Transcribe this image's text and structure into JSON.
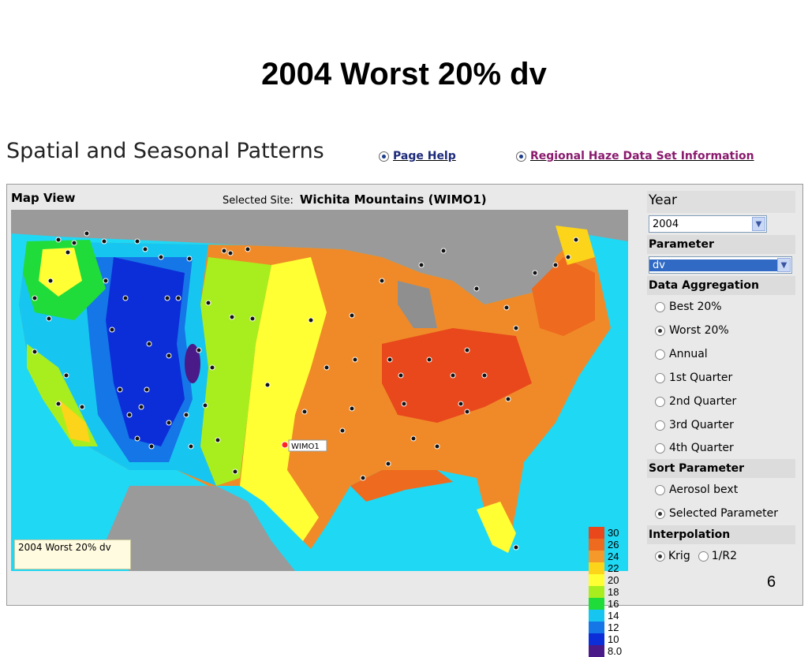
{
  "slide": {
    "title": "2004 Worst 20% dv",
    "number": "6"
  },
  "app": {
    "title": "Spatial and Seasonal Patterns",
    "links": {
      "help": "Page Help",
      "info": "Regional Haze Data Set Information"
    },
    "link_colors": {
      "help": "#1d2a7a",
      "info": "#8a1a6e"
    }
  },
  "map": {
    "view_label": "Map View",
    "selected_site_label": "Selected Site:",
    "selected_site_value": "Wichita Mountains (WIMO1)",
    "site_marker_label": "WIMO1",
    "caption": "2004 Worst 20% dv",
    "legend": [
      {
        "label": "30",
        "color": "#e8481c"
      },
      {
        "label": "26",
        "color": "#ee6a1e"
      },
      {
        "label": "24",
        "color": "#f59a2a"
      },
      {
        "label": "22",
        "color": "#fcd419"
      },
      {
        "label": "20",
        "color": "#ffff33"
      },
      {
        "label": "18",
        "color": "#a8ee1e"
      },
      {
        "label": "16",
        "color": "#1fdc3a"
      },
      {
        "label": "14",
        "color": "#17c6f0"
      },
      {
        "label": "12",
        "color": "#1576e8"
      },
      {
        "label": "10",
        "color": "#0c2ed8"
      },
      {
        "label": "8.0",
        "color": "#4a1a88"
      }
    ]
  },
  "controls": {
    "year_label": "Year",
    "year_value": "2004",
    "parameter_label": "Parameter",
    "parameter_value": "dv",
    "aggregation_label": "Data Aggregation",
    "aggregation_options": [
      "Best 20%",
      "Worst 20%",
      "Annual",
      "1st Quarter",
      "2nd Quarter",
      "3rd Quarter",
      "4th Quarter"
    ],
    "aggregation_selected": "Worst 20%",
    "sort_label": "Sort Parameter",
    "sort_options": [
      "Aerosol bext",
      "Selected Parameter"
    ],
    "sort_selected": "Selected Parameter",
    "interp_label": "Interpolation",
    "interp_options": [
      "Krig",
      "1/R2"
    ],
    "interp_selected": "Krig"
  }
}
